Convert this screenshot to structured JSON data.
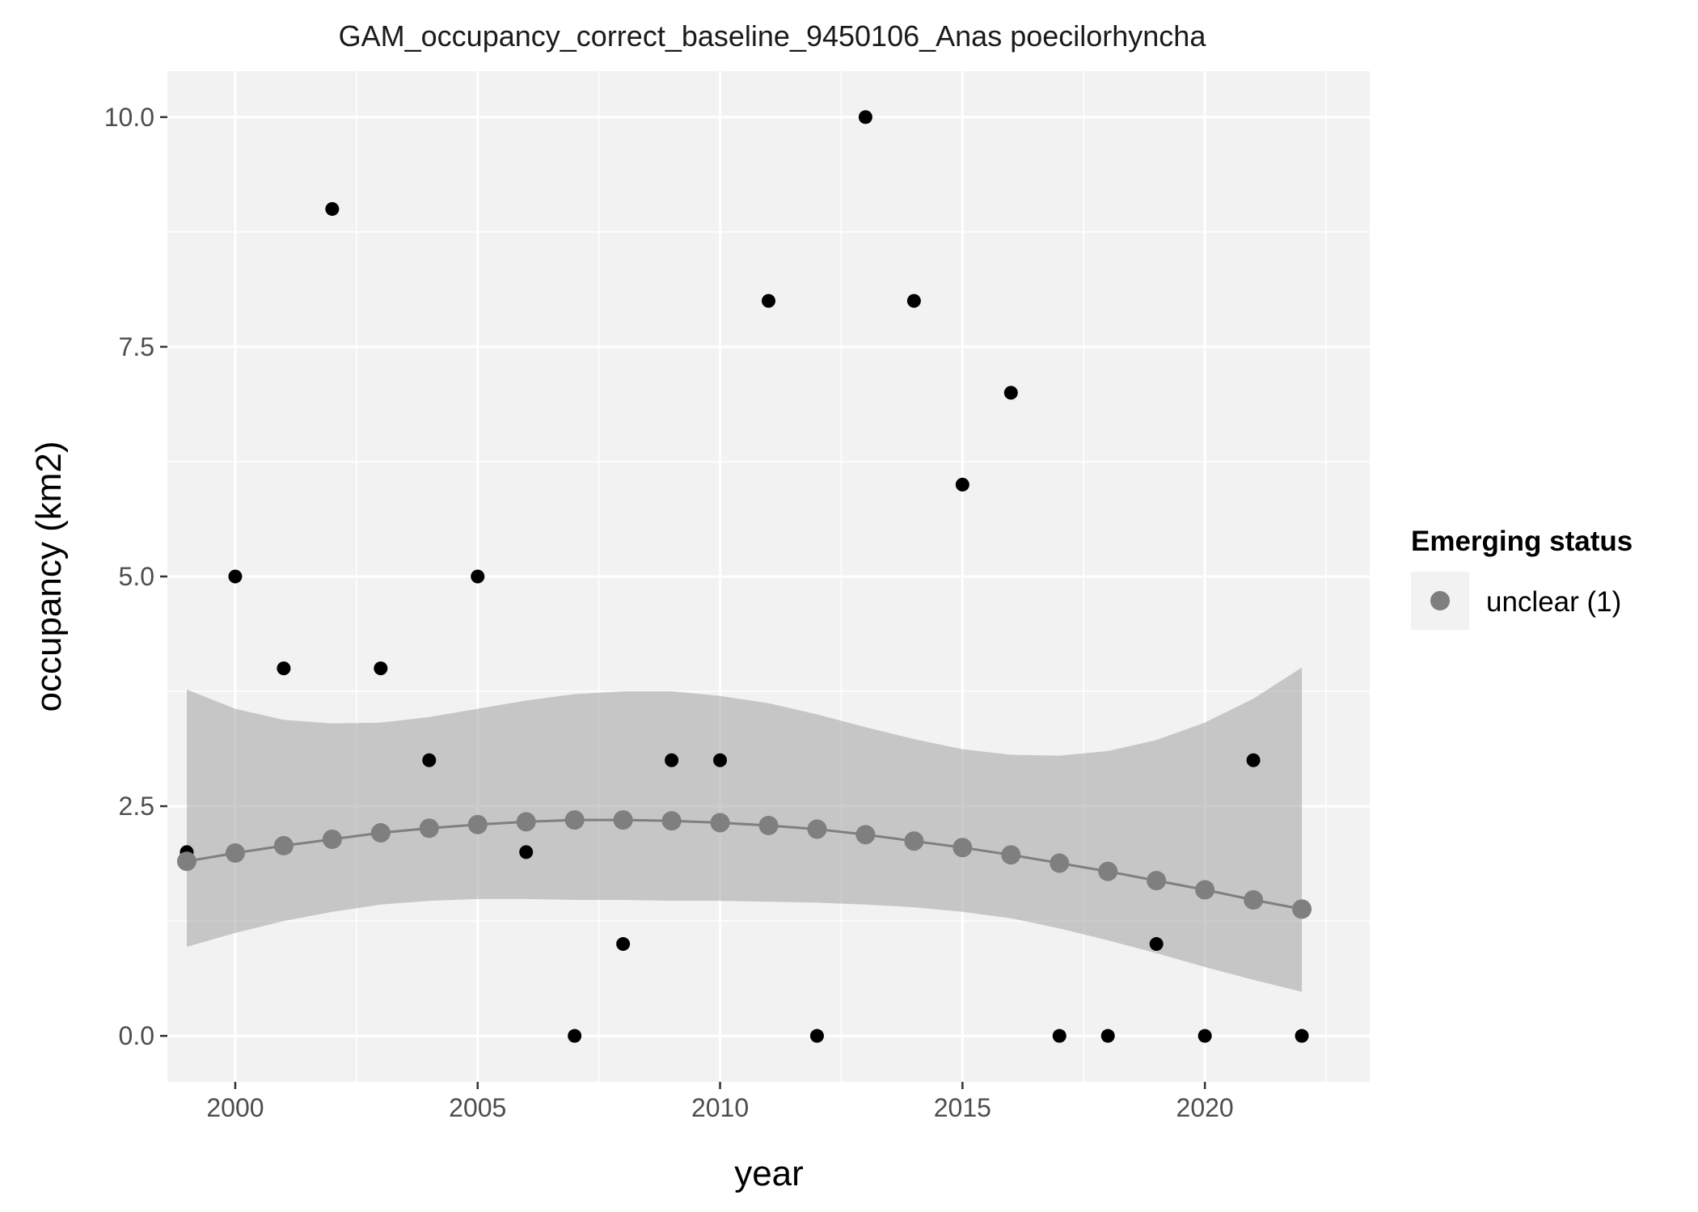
{
  "chart_data": {
    "type": "scatter",
    "title": "GAM_occupancy_correct_baseline_9450106_Anas poecilorhyncha",
    "xlabel": "year",
    "ylabel": "occupancy (km2)",
    "xlim": [
      1998.6,
      2023.4
    ],
    "ylim": [
      -0.5,
      10.5
    ],
    "x_ticks": [
      2000,
      2005,
      2010,
      2015,
      2020
    ],
    "x_tick_labels": [
      "2000",
      "2005",
      "2010",
      "2015",
      "2020"
    ],
    "y_ticks": [
      0,
      2.5,
      5,
      7.5,
      10
    ],
    "y_tick_labels": [
      "0.0",
      "2.5",
      "5.0",
      "7.5",
      "10.0"
    ],
    "grid": true,
    "legend_position": "right",
    "legend": {
      "title": "Emerging status",
      "entries": [
        {
          "label": "unclear (1)",
          "color": "#7f7f7f"
        }
      ]
    },
    "observed": {
      "color": "#000000",
      "x": [
        1999,
        2000,
        2001,
        2002,
        2003,
        2004,
        2005,
        2006,
        2007,
        2008,
        2009,
        2010,
        2011,
        2012,
        2013,
        2014,
        2015,
        2016,
        2017,
        2018,
        2019,
        2020,
        2021,
        2022
      ],
      "y": [
        2,
        5,
        4,
        9,
        4,
        3,
        5,
        2,
        0,
        1,
        3,
        3,
        8,
        0,
        10,
        8,
        6,
        7,
        0,
        0,
        1,
        0,
        3,
        0
      ]
    },
    "fitted": {
      "name": "unclear (1)",
      "color": "#7f7f7f",
      "x": [
        1999,
        2000,
        2001,
        2002,
        2003,
        2004,
        2005,
        2006,
        2007,
        2008,
        2009,
        2010,
        2011,
        2012,
        2013,
        2014,
        2015,
        2016,
        2017,
        2018,
        2019,
        2020,
        2021,
        2022
      ],
      "y": [
        1.9,
        1.99,
        2.07,
        2.14,
        2.21,
        2.26,
        2.3,
        2.33,
        2.35,
        2.35,
        2.34,
        2.32,
        2.29,
        2.25,
        2.19,
        2.12,
        2.05,
        1.97,
        1.88,
        1.79,
        1.69,
        1.59,
        1.48,
        1.38
      ],
      "ci_lower": [
        0.97,
        1.12,
        1.25,
        1.35,
        1.43,
        1.47,
        1.49,
        1.49,
        1.48,
        1.48,
        1.47,
        1.47,
        1.46,
        1.45,
        1.43,
        1.4,
        1.35,
        1.28,
        1.17,
        1.04,
        0.9,
        0.75,
        0.61,
        0.48
      ],
      "ci_upper": [
        3.77,
        3.56,
        3.44,
        3.4,
        3.41,
        3.47,
        3.56,
        3.65,
        3.72,
        3.75,
        3.75,
        3.7,
        3.62,
        3.5,
        3.36,
        3.23,
        3.12,
        3.06,
        3.05,
        3.1,
        3.22,
        3.41,
        3.67,
        4.01
      ],
      "ci_color": "#999999"
    }
  }
}
